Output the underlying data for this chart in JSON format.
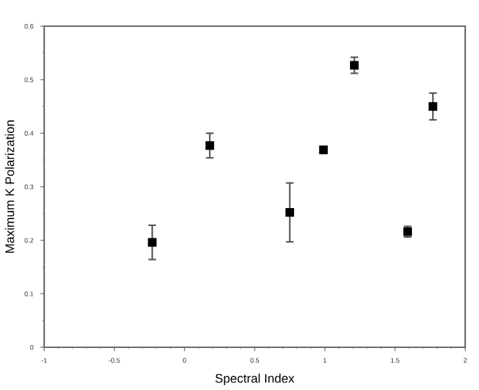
{
  "chart_data": {
    "type": "scatter",
    "xlabel": "Spectral Index",
    "ylabel": "Maximum K Polarization",
    "x": [
      -0.23,
      0.18,
      0.75,
      0.99,
      1.21,
      1.59,
      1.77
    ],
    "values": [
      0.196,
      0.377,
      0.252,
      0.369,
      0.527,
      0.216,
      0.45
    ],
    "errors": [
      0.032,
      0.023,
      0.055,
      0.006,
      0.015,
      0.01,
      0.025
    ],
    "color": "#000000",
    "marker": "square",
    "xlim": [
      -1,
      2
    ],
    "xticks": [
      -1,
      -0.5,
      0,
      0.5,
      1,
      1.5,
      2
    ],
    "ylim": [
      0,
      0.6
    ],
    "yticks": [
      0,
      0.1,
      0.2,
      0.3,
      0.4,
      0.5,
      0.6
    ],
    "grid": false
  }
}
